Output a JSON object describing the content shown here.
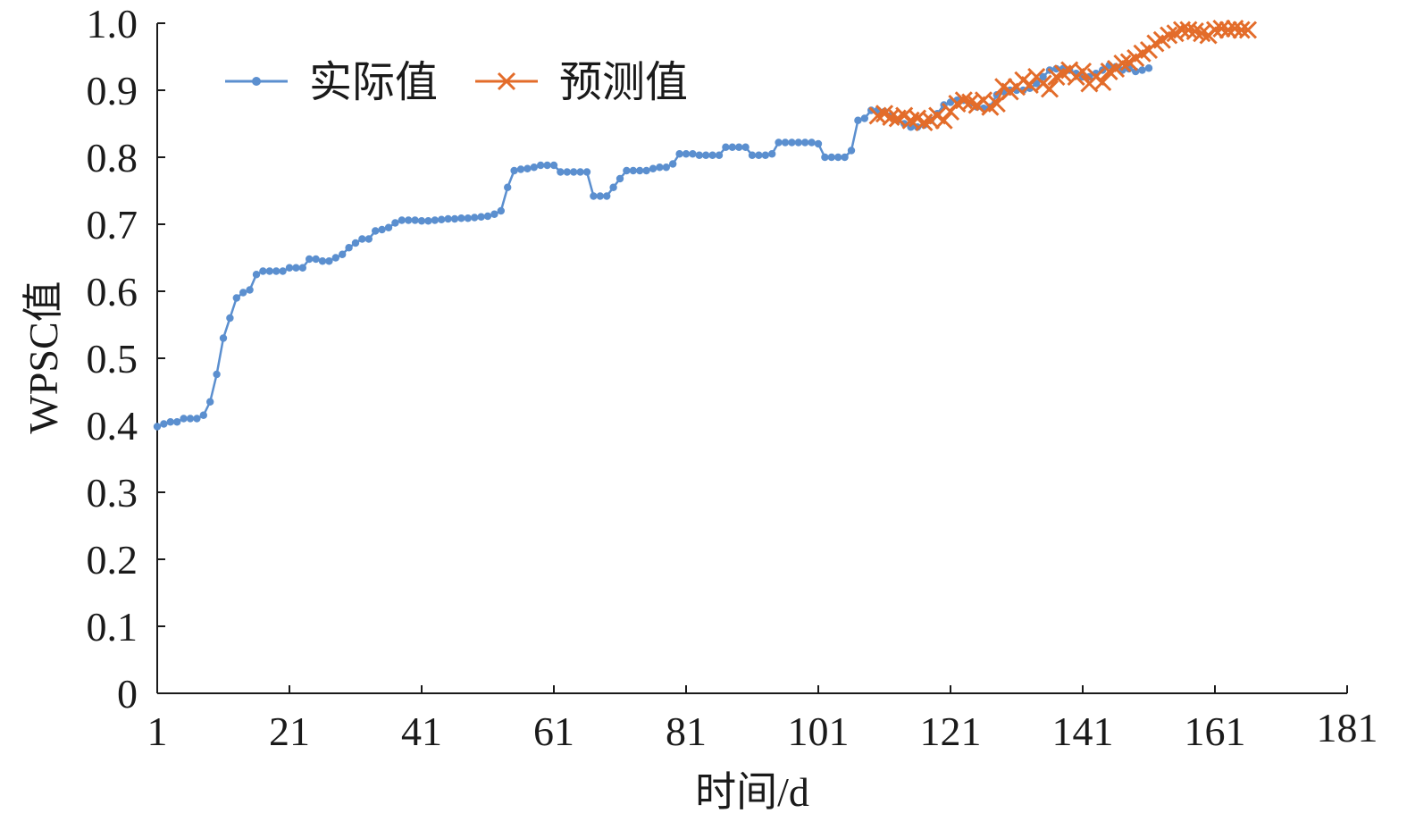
{
  "chart_data": {
    "type": "line",
    "title": "",
    "xlabel": "时间/d",
    "ylabel": "WPSC值",
    "xlim": [
      1,
      181
    ],
    "ylim": [
      0,
      1.0
    ],
    "x_ticks": [
      "1",
      "21",
      "41",
      "61",
      "81",
      "101",
      "121",
      "141",
      "161",
      "181"
    ],
    "y_ticks": [
      "0",
      "0.1",
      "0.2",
      "0.3",
      "0.4",
      "0.5",
      "0.6",
      "0.7",
      "0.8",
      "0.9",
      "1.0"
    ],
    "grid": false,
    "legend_position": "top-left",
    "series": [
      {
        "name": "实际值",
        "color": "#5b8fcf",
        "marker": "circle",
        "x_start": 1,
        "values": [
          0.398,
          0.402,
          0.405,
          0.405,
          0.41,
          0.41,
          0.41,
          0.415,
          0.435,
          0.476,
          0.53,
          0.56,
          0.59,
          0.598,
          0.602,
          0.625,
          0.63,
          0.63,
          0.63,
          0.63,
          0.635,
          0.635,
          0.635,
          0.648,
          0.648,
          0.645,
          0.645,
          0.65,
          0.655,
          0.665,
          0.672,
          0.678,
          0.678,
          0.69,
          0.692,
          0.695,
          0.702,
          0.706,
          0.706,
          0.706,
          0.705,
          0.705,
          0.706,
          0.707,
          0.708,
          0.708,
          0.709,
          0.709,
          0.71,
          0.711,
          0.712,
          0.715,
          0.72,
          0.755,
          0.78,
          0.782,
          0.783,
          0.785,
          0.788,
          0.788,
          0.788,
          0.778,
          0.778,
          0.778,
          0.778,
          0.778,
          0.742,
          0.742,
          0.742,
          0.755,
          0.768,
          0.78,
          0.78,
          0.78,
          0.78,
          0.783,
          0.785,
          0.785,
          0.79,
          0.805,
          0.805,
          0.805,
          0.803,
          0.803,
          0.803,
          0.803,
          0.815,
          0.815,
          0.815,
          0.815,
          0.803,
          0.803,
          0.803,
          0.805,
          0.822,
          0.822,
          0.822,
          0.822,
          0.822,
          0.822,
          0.82,
          0.8,
          0.8,
          0.8,
          0.8,
          0.81,
          0.855,
          0.858,
          0.87,
          0.87,
          0.868,
          0.862,
          0.855,
          0.85,
          0.845,
          0.845,
          0.848,
          0.855,
          0.865,
          0.878,
          0.882,
          0.885,
          0.885,
          0.88,
          0.875,
          0.873,
          0.875,
          0.893,
          0.898,
          0.9,
          0.9,
          0.9,
          0.903,
          0.91,
          0.92,
          0.93,
          0.932,
          0.932,
          0.93,
          0.925,
          0.92,
          0.92,
          0.925,
          0.93,
          0.937,
          0.935,
          0.93,
          0.932,
          0.928,
          0.93,
          0.933
        ]
      },
      {
        "name": "预测值",
        "color": "#e36c2a",
        "marker": "x",
        "x_start": 110,
        "values": [
          0.862,
          0.865,
          0.86,
          0.858,
          0.862,
          0.855,
          0.858,
          0.852,
          0.855,
          0.862,
          0.855,
          0.868,
          0.88,
          0.885,
          0.882,
          0.878,
          0.885,
          0.875,
          0.88,
          0.905,
          0.898,
          0.905,
          0.915,
          0.908,
          0.92,
          0.91,
          0.902,
          0.92,
          0.925,
          0.93,
          0.92,
          0.928,
          0.91,
          0.92,
          0.912,
          0.928,
          0.932,
          0.94,
          0.942,
          0.948,
          0.955,
          0.96,
          0.97,
          0.975,
          0.982,
          0.985,
          0.99,
          0.99,
          0.988,
          0.985,
          0.982,
          0.99,
          0.992,
          0.99,
          0.992,
          0.99,
          0.99
        ]
      }
    ]
  }
}
